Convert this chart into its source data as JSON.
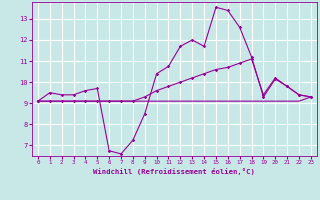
{
  "xlabel": "Windchill (Refroidissement éolien,°C)",
  "bg_color": "#c8e8e8",
  "grid_color": "#ffffff",
  "line_color": "#990099",
  "xlim": [
    -0.5,
    23.5
  ],
  "ylim": [
    6.5,
    13.8
  ],
  "yticks": [
    7,
    8,
    9,
    10,
    11,
    12,
    13
  ],
  "xticks": [
    0,
    1,
    2,
    3,
    4,
    5,
    6,
    7,
    8,
    9,
    10,
    11,
    12,
    13,
    14,
    15,
    16,
    17,
    18,
    19,
    20,
    21,
    22,
    23
  ],
  "line1_x": [
    0,
    1,
    2,
    3,
    4,
    5,
    6,
    7,
    8,
    9,
    10,
    11,
    12,
    13,
    14,
    15,
    16,
    17,
    18,
    19,
    20,
    21,
    22,
    23
  ],
  "line1_y": [
    9.1,
    9.1,
    9.1,
    9.1,
    9.1,
    9.1,
    9.1,
    9.1,
    9.1,
    9.1,
    9.1,
    9.1,
    9.1,
    9.1,
    9.1,
    9.1,
    9.1,
    9.1,
    9.1,
    9.1,
    9.1,
    9.1,
    9.1,
    9.3
  ],
  "line2_x": [
    0,
    1,
    2,
    3,
    4,
    5,
    6,
    7,
    8,
    9,
    10,
    11,
    12,
    13,
    14,
    15,
    16,
    17,
    18,
    19,
    20,
    21,
    22,
    23
  ],
  "line2_y": [
    9.1,
    9.5,
    9.4,
    9.4,
    9.6,
    9.7,
    6.75,
    6.6,
    7.25,
    8.5,
    10.4,
    10.75,
    11.7,
    12.0,
    11.7,
    13.55,
    13.4,
    12.6,
    11.2,
    9.3,
    10.15,
    9.8,
    9.4,
    9.3
  ],
  "line3_x": [
    0,
    1,
    2,
    3,
    4,
    5,
    6,
    7,
    8,
    9,
    10,
    11,
    12,
    13,
    14,
    15,
    16,
    17,
    18,
    19,
    20,
    21,
    22,
    23
  ],
  "line3_y": [
    9.1,
    9.1,
    9.1,
    9.1,
    9.1,
    9.1,
    9.1,
    9.1,
    9.1,
    9.3,
    9.6,
    9.8,
    10.0,
    10.2,
    10.4,
    10.6,
    10.7,
    10.9,
    11.1,
    9.4,
    10.2,
    9.8,
    9.4,
    9.3
  ]
}
